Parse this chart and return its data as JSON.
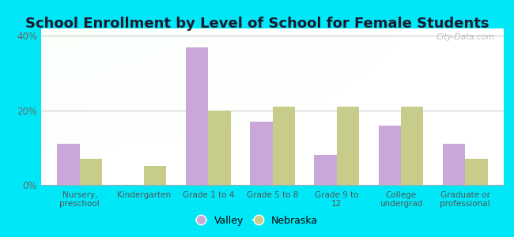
{
  "title": "School Enrollment by Level of School for Female Students",
  "categories": [
    "Nursery,\npreschool",
    "Kindergarten",
    "Grade 1 to 4",
    "Grade 5 to 8",
    "Grade 9 to\n12",
    "College\nundergrad",
    "Graduate or\nprofessional"
  ],
  "valley_values": [
    11,
    0,
    37,
    17,
    8,
    16,
    11
  ],
  "nebraska_values": [
    7,
    5,
    20,
    21,
    21,
    21,
    7
  ],
  "valley_color": "#c9a8d9",
  "nebraska_color": "#c8cc8a",
  "bar_width": 0.35,
  "ylim": [
    0,
    42
  ],
  "yticks": [
    0,
    20,
    40
  ],
  "ytick_labels": [
    "0%",
    "20%",
    "40%"
  ],
  "background_color": "#00e8f8",
  "title_fontsize": 13,
  "legend_labels": [
    "Valley",
    "Nebraska"
  ],
  "watermark": "City-Data.com"
}
